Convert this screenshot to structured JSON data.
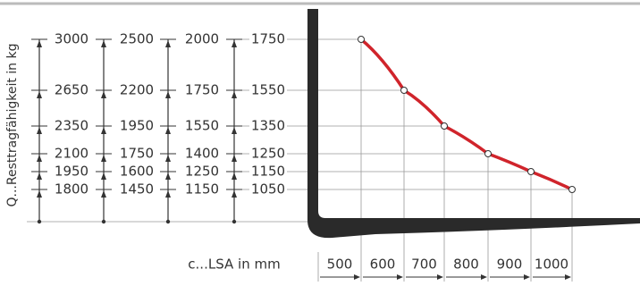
{
  "y_axis_label": "Q...Resttragfähigkeit in kg",
  "x_axis_label": "c...LSA in mm",
  "capacity_table": {
    "rows": [
      [
        3000,
        2500,
        2000,
        1750
      ],
      [
        2650,
        2200,
        1750,
        1550
      ],
      [
        2350,
        1950,
        1550,
        1350
      ],
      [
        2100,
        1750,
        1400,
        1250
      ],
      [
        1950,
        1600,
        1250,
        1150
      ],
      [
        1800,
        1450,
        1150,
        1050
      ]
    ]
  },
  "lsa_values": [
    500,
    600,
    700,
    800,
    900,
    1000
  ]
}
